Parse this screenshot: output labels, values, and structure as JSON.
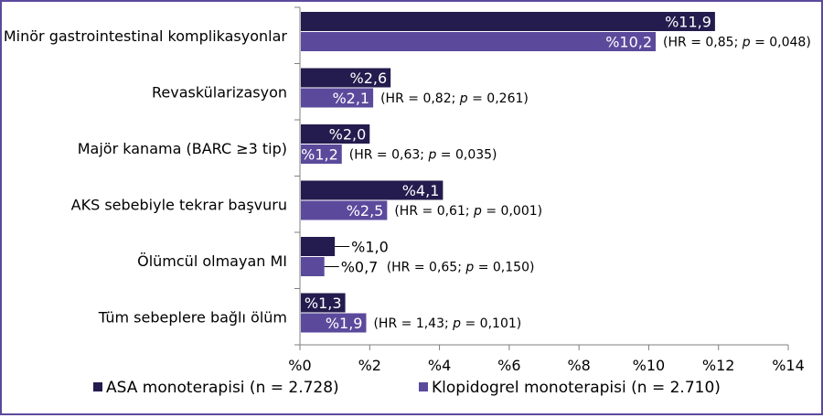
{
  "chart_data": {
    "type": "bar",
    "orientation": "horizontal",
    "categories": [
      "Minör gastrointestinal komplikasyonlar",
      "Revaskülarizasyon",
      "Majör kanama (BARC ≥3 tip)",
      "AKS sebebiyle tekrar başvuru",
      "Ölümcül olmayan MI",
      "Tüm sebeplere bağlı ölüm"
    ],
    "series": [
      {
        "name": "ASA monoterapisi (n = 2.728)",
        "color": "#241c4e",
        "values": [
          11.9,
          2.6,
          2.0,
          4.1,
          1.0,
          1.3
        ],
        "labels": [
          "%11,9",
          "%2,6",
          "%2,0",
          "%4,1",
          "%1,0",
          "%1,3"
        ]
      },
      {
        "name": "Klopidogrel monoterapisi (n = 2.710)",
        "color": "#5b4a9c",
        "values": [
          10.2,
          2.1,
          1.2,
          2.5,
          0.7,
          1.9
        ],
        "labels": [
          "%10,2",
          "%2,1",
          "%1,2",
          "%2,5",
          "%0,7",
          "%1,9"
        ]
      }
    ],
    "annotations": [
      {
        "pre": "(HR = 0,85; ",
        "p": "p",
        "post": " = 0,048)"
      },
      {
        "pre": "(HR = 0,82; ",
        "p": "p",
        "post": " = 0,261)"
      },
      {
        "pre": "(HR = 0,63; ",
        "p": "p",
        "post": " = 0,035)"
      },
      {
        "pre": "(HR = 0,61; ",
        "p": "p",
        "post": " = 0,001)"
      },
      {
        "pre": "(HR = 0,65; ",
        "p": "p",
        "post": " = 0,150)"
      },
      {
        "pre": "(HR = 1,43; ",
        "p": "p",
        "post": " = 0,101)"
      }
    ],
    "xlim": [
      0,
      14
    ],
    "xticks": [
      0,
      2,
      4,
      6,
      8,
      10,
      12,
      14
    ],
    "xtick_labels": [
      "%0",
      "%2",
      "%4",
      "%6",
      "%8",
      "%10",
      "%12",
      "%14"
    ],
    "legend_position": "bottom",
    "grid": false
  }
}
